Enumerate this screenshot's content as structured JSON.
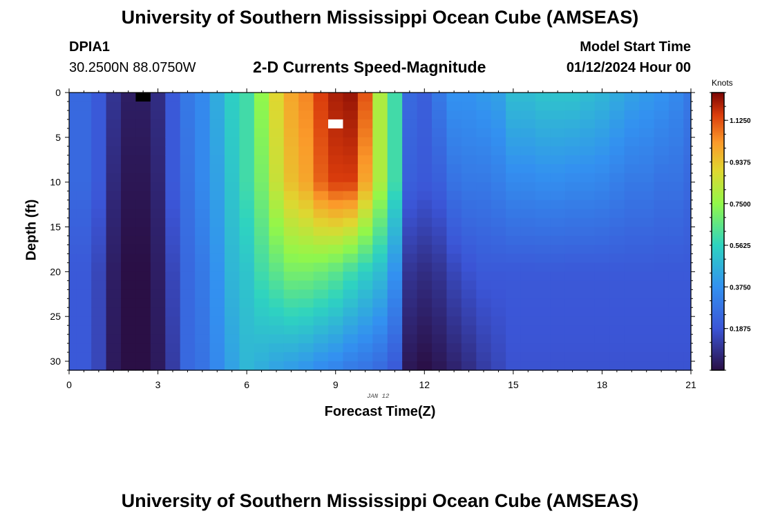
{
  "header": {
    "title": "University of Southern Mississippi Ocean Cube (AMSEAS)",
    "station_id": "DPIA1",
    "coords": "30.2500N  88.0750W",
    "plot_title": "2-D Currents Speed-Magnitude",
    "start_label": "Model Start Time",
    "start_value": "01/12/2024 Hour 00",
    "date_stamp": "JAN 12",
    "footer_title": "University of Southern Mississippi Ocean Cube (AMSEAS)"
  },
  "chart_data": {
    "type": "heatmap",
    "title": "2-D Currents Speed-Magnitude",
    "xlabel": "Forecast Time(Z)",
    "ylabel": "Depth (ft)",
    "xlim": [
      0,
      21
    ],
    "ylim": [
      31,
      0
    ],
    "x_ticks": [
      0,
      3,
      6,
      9,
      12,
      15,
      18,
      21
    ],
    "y_ticks": [
      0,
      5,
      10,
      15,
      20,
      25,
      30
    ],
    "colorbar": {
      "label": "Knots",
      "range": [
        0,
        1.25
      ],
      "ticks": [
        0.1875,
        0.375,
        0.5625,
        0.75,
        0.9375,
        1.125
      ],
      "tick_labels": [
        "0.1875",
        "0.3750",
        "0.5625",
        "0.7500",
        "0.9375",
        "1.1250"
      ]
    },
    "time_start": 0,
    "time_step": 0.5,
    "depth_step": 1,
    "time_profiles": [
      [
        0.25,
        0.25,
        0.2,
        0.2
      ],
      [
        0.25,
        0.25,
        0.2,
        0.2
      ],
      [
        0.2,
        0.2,
        0.15,
        0.15
      ],
      [
        0.1,
        0.07,
        0.04,
        0.03
      ],
      [
        0.04,
        0.02,
        0.0,
        0.0
      ],
      [
        0.04,
        0.02,
        0.0,
        0.0
      ],
      [
        0.08,
        0.06,
        0.04,
        0.03
      ],
      [
        0.2,
        0.2,
        0.15,
        0.12
      ],
      [
        0.3,
        0.28,
        0.25,
        0.25
      ],
      [
        0.35,
        0.35,
        0.3,
        0.28
      ],
      [
        0.45,
        0.42,
        0.38,
        0.35
      ],
      [
        0.55,
        0.52,
        0.48,
        0.42
      ],
      [
        0.6,
        0.6,
        0.52,
        0.48
      ],
      [
        0.75,
        0.7,
        0.6,
        0.45
      ],
      [
        0.9,
        0.85,
        0.65,
        0.42
      ],
      [
        1.0,
        0.95,
        0.7,
        0.4
      ],
      [
        1.05,
        1.0,
        0.7,
        0.38
      ],
      [
        1.15,
        1.1,
        0.68,
        0.35
      ],
      [
        1.2,
        1.15,
        0.65,
        0.33
      ],
      [
        1.22,
        1.15,
        0.6,
        0.3
      ],
      [
        1.12,
        1.0,
        0.55,
        0.28
      ],
      [
        0.8,
        0.8,
        0.5,
        0.25
      ],
      [
        0.6,
        0.6,
        0.38,
        0.2
      ],
      [
        0.25,
        0.22,
        0.1,
        0.02
      ],
      [
        0.22,
        0.2,
        0.08,
        0.0
      ],
      [
        0.3,
        0.22,
        0.1,
        0.02
      ],
      [
        0.38,
        0.28,
        0.15,
        0.05
      ],
      [
        0.38,
        0.3,
        0.18,
        0.08
      ],
      [
        0.4,
        0.3,
        0.2,
        0.12
      ],
      [
        0.42,
        0.32,
        0.2,
        0.15
      ],
      [
        0.5,
        0.35,
        0.2,
        0.18
      ],
      [
        0.5,
        0.35,
        0.2,
        0.18
      ],
      [
        0.52,
        0.36,
        0.2,
        0.18
      ],
      [
        0.52,
        0.36,
        0.2,
        0.18
      ],
      [
        0.52,
        0.35,
        0.2,
        0.18
      ],
      [
        0.5,
        0.35,
        0.2,
        0.18
      ],
      [
        0.48,
        0.34,
        0.2,
        0.18
      ],
      [
        0.45,
        0.32,
        0.2,
        0.18
      ],
      [
        0.42,
        0.3,
        0.2,
        0.18
      ],
      [
        0.4,
        0.3,
        0.2,
        0.18
      ],
      [
        0.38,
        0.28,
        0.2,
        0.18
      ],
      [
        0.35,
        0.28,
        0.2,
        0.18
      ],
      [
        0.3,
        0.25,
        0.2,
        0.18
      ]
    ],
    "profile_depths": [
      0,
      10,
      20,
      31
    ],
    "masked_cells": [
      {
        "t": 2.5,
        "depth": 0,
        "value": "low"
      },
      {
        "t": 9.0,
        "depth": 3,
        "value": "high"
      }
    ]
  }
}
